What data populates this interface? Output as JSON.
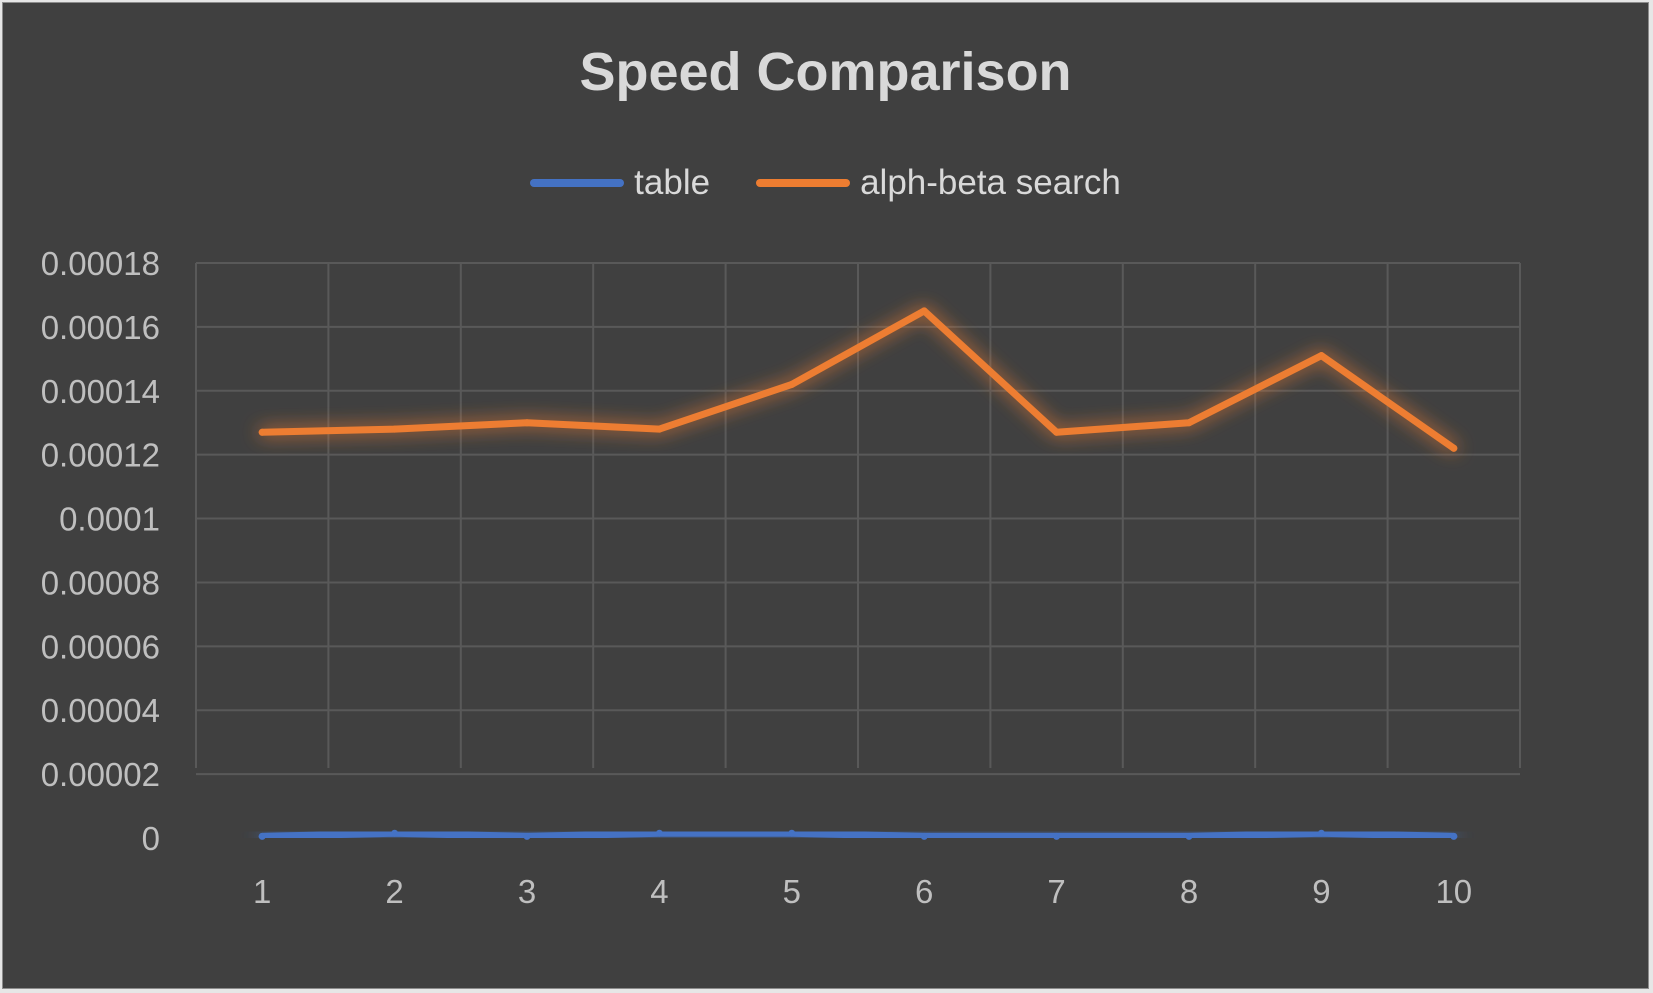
{
  "chart_data": {
    "type": "line",
    "title": "Speed Comparison",
    "xlabel": "",
    "ylabel": "",
    "categories": [
      "1",
      "2",
      "3",
      "4",
      "5",
      "6",
      "7",
      "8",
      "9",
      "10"
    ],
    "y_tick_labels": [
      "0.00018",
      "0.00016",
      "0.00014",
      "0.00012",
      "0.0001",
      "0.00008",
      "0.00006",
      "0.00004",
      "0.00002",
      "0"
    ],
    "ylim": [
      0,
      0.00018
    ],
    "y_tick_step": 2e-05,
    "grid": true,
    "legend_position": "top",
    "series": [
      {
        "name": "table",
        "color": "#4472c4",
        "values": [
          5e-07,
          1.5e-06,
          5e-07,
          1.5e-06,
          1.5e-06,
          5e-07,
          5e-07,
          5e-07,
          1.5e-06,
          5e-07
        ]
      },
      {
        "name": "alph-beta search",
        "color": "#ed7d31",
        "values": [
          0.000127,
          0.000128,
          0.00013,
          0.000128,
          0.000142,
          0.000165,
          0.000127,
          0.00013,
          0.000151,
          0.000122
        ]
      }
    ]
  },
  "colors": {
    "background": "#404040",
    "text": "#d9d9d9",
    "axis_text": "#bfbfbf",
    "grid": "#595959"
  }
}
